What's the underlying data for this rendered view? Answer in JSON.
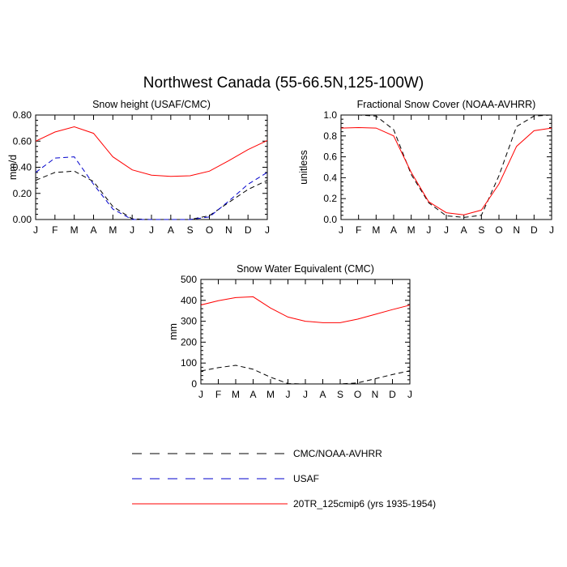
{
  "figure": {
    "title": "Northwest Canada (55-66.5N,125-100W)"
  },
  "legend": [
    {
      "label": "CMC/NOAA-AVHRR",
      "color": "#000000",
      "dash": "dashed"
    },
    {
      "label": "USAF",
      "color": "#0000cc",
      "dash": "dashed"
    },
    {
      "label": "20TR_125cmip6 (yrs 1935-1954)",
      "color": "#ff0000",
      "dash": "solid"
    }
  ],
  "chart_data": [
    {
      "type": "line",
      "title": "Snow height (USAF/CMC)",
      "xlabel": "",
      "ylabel": "mm/d",
      "categories": [
        "J",
        "F",
        "M",
        "A",
        "M",
        "J",
        "J",
        "A",
        "S",
        "O",
        "N",
        "D",
        "J"
      ],
      "ylim": [
        0,
        0.8
      ],
      "yticks": [
        0,
        0.2,
        0.4,
        0.6,
        0.8
      ],
      "yticklabels": [
        "0.00",
        "0.20",
        "0.40",
        "0.60",
        "0.80"
      ],
      "series": [
        {
          "name": "CMC/NOAA-AVHRR",
          "color": "#000000",
          "dash": "dashed",
          "values": [
            0.3,
            0.36,
            0.37,
            0.29,
            0.1,
            0.005,
            0.0,
            0.0,
            0.0,
            0.03,
            0.13,
            0.23,
            0.3
          ]
        },
        {
          "name": "USAF",
          "color": "#0000cc",
          "dash": "dashed",
          "values": [
            0.36,
            0.47,
            0.48,
            0.27,
            0.08,
            0.0,
            0.0,
            0.0,
            0.0,
            0.02,
            0.14,
            0.27,
            0.36
          ]
        },
        {
          "name": "20TR_125cmip6 (yrs 1935-1954)",
          "color": "#ff0000",
          "dash": "solid",
          "values": [
            0.6,
            0.67,
            0.71,
            0.66,
            0.48,
            0.38,
            0.34,
            0.33,
            0.335,
            0.37,
            0.45,
            0.535,
            0.605
          ]
        }
      ]
    },
    {
      "type": "line",
      "title": "Fractional Snow Cover (NOAA-AVHRR)",
      "xlabel": "",
      "ylabel": "unitless",
      "categories": [
        "J",
        "F",
        "M",
        "A",
        "M",
        "J",
        "J",
        "A",
        "S",
        "O",
        "N",
        "D",
        "J"
      ],
      "ylim": [
        0,
        1.0
      ],
      "yticks": [
        0,
        0.2,
        0.4,
        0.6,
        0.8,
        1.0
      ],
      "yticklabels": [
        "0.0",
        "0.2",
        "0.4",
        "0.6",
        "0.8",
        "1.0"
      ],
      "series": [
        {
          "name": "CMC/NOAA-AVHRR",
          "color": "#000000",
          "dash": "dashed",
          "values": [
            1.0,
            1.0,
            0.99,
            0.86,
            0.43,
            0.16,
            0.035,
            0.02,
            0.04,
            0.42,
            0.89,
            0.99,
            1.0
          ]
        },
        {
          "name": "20TR_125cmip6 (yrs 1935-1954)",
          "color": "#ff0000",
          "dash": "solid",
          "values": [
            0.875,
            0.88,
            0.875,
            0.8,
            0.45,
            0.17,
            0.065,
            0.045,
            0.09,
            0.34,
            0.7,
            0.85,
            0.875
          ]
        }
      ]
    },
    {
      "type": "line",
      "title": "Snow Water Equivalent (CMC)",
      "xlabel": "",
      "ylabel": "mm",
      "categories": [
        "J",
        "F",
        "M",
        "A",
        "M",
        "J",
        "J",
        "A",
        "S",
        "O",
        "N",
        "D",
        "J"
      ],
      "ylim": [
        0,
        500
      ],
      "yticks": [
        0,
        100,
        200,
        300,
        400,
        500
      ],
      "yticklabels": [
        "0",
        "100",
        "200",
        "300",
        "400",
        "500"
      ],
      "series": [
        {
          "name": "CMC/NOAA-AVHRR",
          "color": "#000000",
          "dash": "dashed",
          "values": [
            62,
            78,
            89,
            70,
            32,
            2,
            0,
            0,
            0,
            5,
            25,
            45,
            63
          ]
        },
        {
          "name": "20TR_125cmip6 (yrs 1935-1954)",
          "color": "#ff0000",
          "dash": "solid",
          "values": [
            378,
            398,
            413,
            417,
            363,
            320,
            300,
            293,
            293,
            310,
            333,
            356,
            377
          ]
        }
      ]
    }
  ]
}
